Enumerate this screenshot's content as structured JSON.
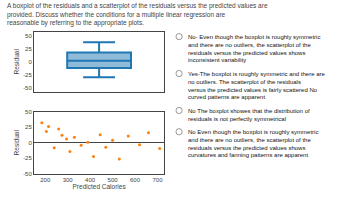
{
  "chart_data": [
    {
      "type": "box",
      "title": "A boxplot of the residuals and a scatterplot of the residuals versus the predicted values are provided. Discuss whether the conditions for a multiple linear regression are\nreasonable by referring to the appropriate plots.",
      "ylabel": "Residual",
      "median": 2,
      "q1": -12,
      "q3": 18,
      "whisker_low": -30,
      "whisker_high": 38,
      "ylim": [
        -58,
        58
      ],
      "yticks": [
        50,
        25,
        0,
        -25,
        -50
      ],
      "tick_labels": "y",
      "grid": false,
      "annotations": [
        "No- Even though the boxplot is roughly symmetric and there are no outliers, the scatterplot of the residuals versus the predicted values shows inconsistent variability",
        "Yes-The boxplot is roughly symmetric and there are no outliers. The scatterplot of the residuals versus the predicted values is fairly scattered No curved patterns are apparent",
        "No The boxplot showes that the distribution of residuals is not perfectly symmetrical",
        "No Even though the boxplot is roughly symmetric and there are no outliers, the scatterplot of the residuals versus the predicted values shows curvatures and fanning patterns are apparent"
      ]
    },
    {
      "type": "scatter",
      "xlabel": "Predicted Calories",
      "ylabel": "Residual",
      "x": [
        185,
        205,
        215,
        240,
        260,
        275,
        295,
        310,
        330,
        360,
        390,
        415,
        445,
        470,
        500,
        530,
        570,
        620,
        660,
        710
      ],
      "y": [
        32,
        18,
        26,
        -8,
        22,
        12,
        6,
        -14,
        9,
        -4,
        1,
        -22,
        13,
        -7,
        4,
        -26,
        11,
        -3,
        16,
        -9
      ],
      "xlim": [
        150,
        730
      ],
      "ylim": [
        -50,
        50
      ],
      "xticks": [
        200,
        300,
        400,
        500,
        600,
        700
      ],
      "yticks": [
        50,
        25,
        0,
        -25,
        -50
      ],
      "grid": false
    }
  ]
}
